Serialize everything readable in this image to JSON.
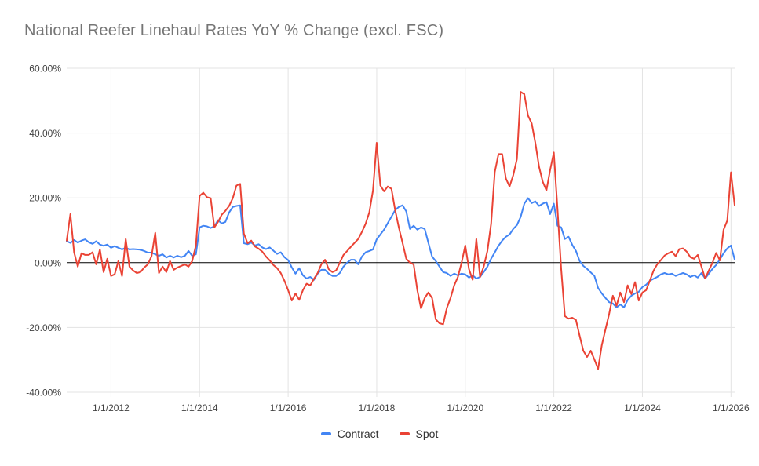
{
  "title": "National Reefer Linehaul Rates YoY % Change (excl. FSC)",
  "chart_data": {
    "type": "line",
    "title": "National Reefer Linehaul Rates YoY % Change (excl. FSC)",
    "xlabel": "",
    "ylabel": "",
    "x_unit": "month",
    "x_start": "1/2011",
    "x_end": "2/2026",
    "ylim": [
      -40,
      60
    ],
    "grid": true,
    "legend_position": "bottom",
    "y_ticks": [
      {
        "label": "60.00%",
        "value": 60
      },
      {
        "label": "40.00%",
        "value": 40
      },
      {
        "label": "20.00%",
        "value": 20
      },
      {
        "label": "0.00%",
        "value": 0
      },
      {
        "label": "-20.00%",
        "value": -20
      },
      {
        "label": "-40.00%",
        "value": -40
      }
    ],
    "x_ticks": [
      {
        "label": "1/1/2012",
        "month_index": 12
      },
      {
        "label": "1/1/2014",
        "month_index": 36
      },
      {
        "label": "1/1/2016",
        "month_index": 60
      },
      {
        "label": "1/1/2018",
        "month_index": 84
      },
      {
        "label": "1/1/2020",
        "month_index": 108
      },
      {
        "label": "1/1/2022",
        "month_index": 132
      },
      {
        "label": "1/1/2024",
        "month_index": 156
      },
      {
        "label": "1/1/2026",
        "month_index": 180
      }
    ],
    "series": [
      {
        "name": "Contract",
        "color": "#4285F4",
        "values": [
          6.6,
          6.1,
          7,
          6.2,
          6.8,
          7.2,
          6.3,
          5.8,
          6.6,
          5.6,
          5.2,
          5.6,
          4.6,
          5.1,
          4.6,
          4.1,
          4.6,
          4.1,
          4.2,
          4.1,
          4,
          3.6,
          3.1,
          3.1,
          2.6,
          2.1,
          2.6,
          1.6,
          2.1,
          1.6,
          2.1,
          1.7,
          2.1,
          3.6,
          2.1,
          2.6,
          10.9,
          11.4,
          11.2,
          10.7,
          11.2,
          13.1,
          12.1,
          12.6,
          15.5,
          17.2,
          17.5,
          17.7,
          6,
          5.7,
          6.2,
          5.3,
          5.7,
          4.7,
          4.2,
          4.7,
          3.7,
          2.7,
          3.2,
          1.7,
          0.8,
          -1.5,
          -3.4,
          -1.7,
          -3.9,
          -4.9,
          -4.4,
          -5.3,
          -3.4,
          -2.2,
          -2.2,
          -3.4,
          -4.1,
          -4.1,
          -3.2,
          -1.2,
          0,
          0.9,
          0.9,
          -0.5,
          1.9,
          3.2,
          3.6,
          4.1,
          7.2,
          8.7,
          10.2,
          12.2,
          14.2,
          16.2,
          17.2,
          17.7,
          15.8,
          10.4,
          11.4,
          10.2,
          10.9,
          10.4,
          6.1,
          1.9,
          0.5,
          -1.2,
          -2.9,
          -3.2,
          -4.1,
          -3.4,
          -3.9,
          -3.4,
          -3.6,
          -4.6,
          -3.9,
          -4.9,
          -4.4,
          -2.9,
          -1.2,
          1.2,
          3.2,
          5.2,
          6.8,
          8,
          8.7,
          10.4,
          11.6,
          14.1,
          18.2,
          19.9,
          18.4,
          18.9,
          17.5,
          18.2,
          18.7,
          15,
          18.2,
          11.4,
          10.9,
          7.3,
          8,
          5.5,
          3.6,
          0.5,
          -1,
          -1.9,
          -3,
          -4.1,
          -7.8,
          -9.5,
          -10.9,
          -12.2,
          -12.6,
          -13.8,
          -12.9,
          -13.8,
          -11.5,
          -10.2,
          -9.5,
          -9,
          -7.5,
          -6.8,
          -5.6,
          -5,
          -4.4,
          -3.6,
          -3.2,
          -3.6,
          -3.4,
          -4.1,
          -3.6,
          -3.2,
          -3.6,
          -4.4,
          -3.9,
          -4.6,
          -3.2,
          -4.9,
          -3.4,
          -1.9,
          -0.7,
          1,
          2.9,
          4.4,
          5.3,
          1
        ]
      },
      {
        "name": "Spot",
        "color": "#EA4335",
        "values": [
          6.8,
          15,
          3.2,
          -1.2,
          2.9,
          2.4,
          2.4,
          3.2,
          -0.5,
          4.1,
          -2.9,
          1.2,
          -4.1,
          -3.6,
          0.5,
          -4.1,
          7.3,
          -1.2,
          -2.4,
          -3.2,
          -2.9,
          -1.5,
          -0.5,
          2,
          9.2,
          -3.2,
          -1.2,
          -2.9,
          0.5,
          -2.2,
          -1.5,
          -1,
          -0.5,
          -1.2,
          0.5,
          5.3,
          20.6,
          21.6,
          20.2,
          19.9,
          10.9,
          12.6,
          14.8,
          16,
          17.5,
          19.9,
          23.8,
          24.3,
          9,
          6,
          6.8,
          5,
          4.3,
          3.4,
          1.9,
          0.7,
          -0.7,
          -1.7,
          -3.2,
          -5.6,
          -8.5,
          -11.7,
          -9.5,
          -11.5,
          -8.5,
          -6.5,
          -7,
          -5,
          -3.2,
          -0.5,
          0.9,
          -2,
          -2.9,
          -2.4,
          0,
          2.4,
          3.6,
          4.9,
          6.1,
          7.3,
          9.5,
          12,
          15.5,
          22.3,
          37,
          23.8,
          22,
          23.5,
          22.8,
          16.3,
          10.9,
          6.1,
          1.2,
          0,
          -0.5,
          -8.5,
          -14.1,
          -10.9,
          -9.2,
          -10.9,
          -17.5,
          -18.7,
          -19,
          -14,
          -10.9,
          -7,
          -4.4,
          0,
          5.3,
          -2,
          -5.3,
          7.3,
          -4.4,
          -1.2,
          3.6,
          12,
          28,
          33.5,
          33.5,
          26,
          23.5,
          27,
          32,
          52.7,
          52,
          45.4,
          43,
          36.9,
          29.6,
          25,
          22.3,
          28.6,
          34,
          16.5,
          -2,
          -16.5,
          -17.3,
          -17,
          -17.7,
          -22.6,
          -27.2,
          -29.1,
          -27.2,
          -29.9,
          -32.8,
          -25.5,
          -20.6,
          -15.8,
          -10.2,
          -13.3,
          -9.2,
          -12.2,
          -7,
          -9.7,
          -6,
          -11.7,
          -9.2,
          -8.5,
          -5.6,
          -2.5,
          -0.5,
          0.8,
          2.2,
          2.9,
          3.4,
          2,
          4.2,
          4.4,
          3.4,
          1.7,
          1.2,
          2.4,
          -1.2,
          -4.9,
          -2.4,
          0,
          3,
          0.7,
          10.2,
          13,
          27.9,
          17.7
        ]
      }
    ],
    "colors": {
      "gridline": "#e3e3e3",
      "zero_axis": "#000000",
      "tick_text": "#424242",
      "title_text": "#757575",
      "background": "#ffffff"
    }
  }
}
